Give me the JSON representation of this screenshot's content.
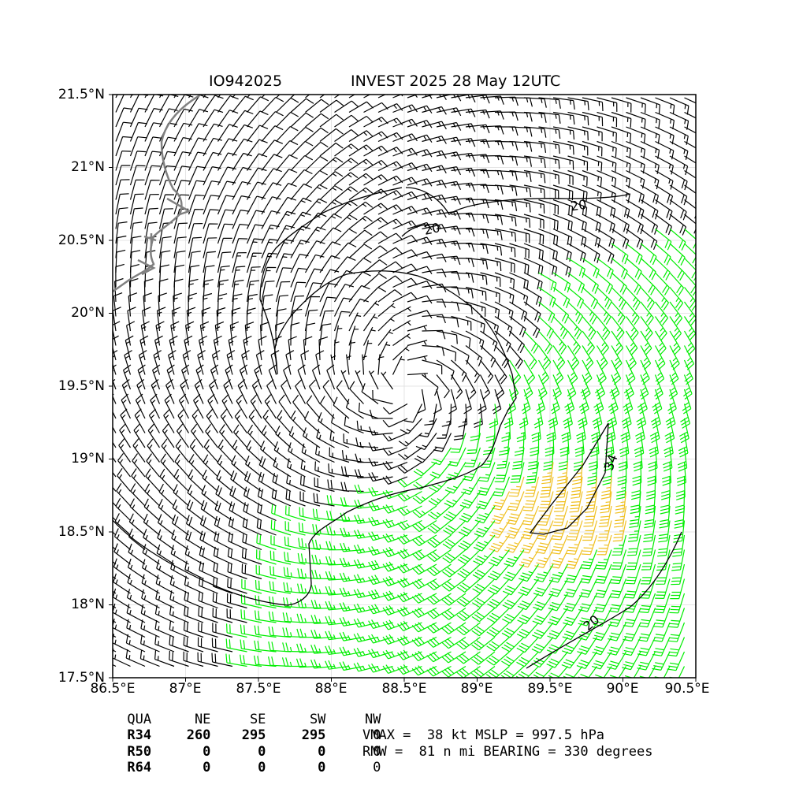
{
  "title": {
    "storm_id": "IO942025",
    "main": "INVEST 2025 28 May 12UTC"
  },
  "axes": {
    "lat_ticks": [
      "21.5°N",
      "21°N",
      "20.5°N",
      "20°N",
      "19.5°N",
      "19°N",
      "18.5°N",
      "18°N",
      "17.5°N"
    ],
    "lon_ticks": [
      "86.5°E",
      "87°E",
      "87.5°E",
      "88°E",
      "88.5°E",
      "89°E",
      "89.5°E",
      "90°E",
      "90.5°E"
    ],
    "lat_range": [
      17.5,
      21.5
    ],
    "lon_range": [
      86.5,
      90.5
    ]
  },
  "contour_labels": [
    "20",
    "20",
    "20",
    "34"
  ],
  "colors": {
    "low": "#000000",
    "mid": "#00ee00",
    "high": "#f0c020",
    "coast": "#808080",
    "grid": "#dddddd"
  },
  "wind_field": {
    "center_lat": 19.5,
    "center_lon": 88.5,
    "rmw_nmi": 81,
    "vmax_kt": 38
  },
  "radii_table": {
    "header": [
      "QUA",
      "NE",
      "SE",
      "SW",
      "NW"
    ],
    "rows": [
      [
        "R34",
        "260",
        "295",
        "295",
        "0"
      ],
      [
        "R50",
        "0",
        "0",
        "0",
        "0"
      ],
      [
        "R64",
        "0",
        "0",
        "0",
        "0"
      ]
    ]
  },
  "info": {
    "line1": "VMAX =  38 kt MSLP = 997.5 hPa",
    "line2": "RMW =  81 n mi BEARING = 330 degrees"
  }
}
